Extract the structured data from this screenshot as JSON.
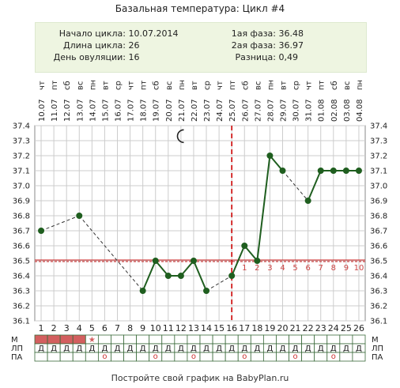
{
  "title": "Базальная температура: Цикл #4",
  "summary": {
    "cycle_start_label": "Начало цикла:",
    "cycle_start_value": "10.07.2014",
    "cycle_length_label": "Длина цикла:",
    "cycle_length_value": "26",
    "ovulation_day_label": "День овуляции:",
    "ovulation_day_value": "16",
    "phase1_label": "1ая фаза:",
    "phase1_value": "36.48",
    "phase2_label": "2ая фаза:",
    "phase2_value": "36.97",
    "difference_label": "Разница:",
    "difference_value": "0,49"
  },
  "chart_data": {
    "type": "line",
    "x": [
      1,
      2,
      3,
      4,
      5,
      6,
      7,
      8,
      9,
      10,
      11,
      12,
      13,
      14,
      15,
      16,
      17,
      18,
      19,
      20,
      21,
      22,
      23,
      24,
      25,
      26
    ],
    "dates": [
      "10.07",
      "11.07",
      "12.07",
      "13.07",
      "14.07",
      "15.07",
      "16.07",
      "17.07",
      "18.07",
      "19.07",
      "20.07",
      "21.07",
      "22.07",
      "23.07",
      "24.07",
      "25.07",
      "26.07",
      "27.07",
      "28.07",
      "29.07",
      "30.07",
      "31.07",
      "01.08",
      "02.08",
      "03.08",
      "04.08"
    ],
    "weekdays": [
      "чт",
      "пт",
      "сб",
      "вс",
      "пн",
      "вт",
      "ср",
      "чт",
      "пт",
      "сб",
      "вс",
      "пн",
      "вт",
      "ср",
      "чт",
      "пт",
      "сб",
      "вс",
      "пн",
      "вт",
      "ср",
      "чт",
      "пт",
      "сб",
      "вс",
      "пн"
    ],
    "series": [
      {
        "values": [
          36.7,
          null,
          null,
          36.8,
          null,
          null,
          null,
          null,
          36.3,
          36.5,
          36.4,
          36.4,
          36.5,
          36.3,
          null,
          36.4,
          36.6,
          36.5,
          37.2,
          37.1,
          null,
          36.9,
          37.1,
          37.1,
          37.1,
          37.1
        ],
        "color": "#1f5e1f"
      }
    ],
    "ylim": [
      36.1,
      37.4
    ],
    "yticks": [
      "36.1",
      "36.2",
      "36.3",
      "36.4",
      "36.5",
      "36.6",
      "36.7",
      "36.8",
      "36.9",
      "37.0",
      "37.1",
      "37.2",
      "37.3",
      "37.4"
    ],
    "coverline": 36.5,
    "ovulation_day": 16,
    "post_ovulation_labels": [
      "1",
      "2",
      "3",
      "4",
      "5",
      "6",
      "7",
      "8",
      "9",
      "10"
    ],
    "grid": true,
    "moon_icon_day": 12,
    "colors": {
      "line": "#1f5e1f",
      "coverline": "#cc2222",
      "ovulation": "#cc0000",
      "grid": "#cccccc",
      "menstruation": "#d35f5f",
      "info_bg": "#eef5e1"
    }
  },
  "rows": {
    "m_label": "М",
    "lp_label": "ЛП",
    "pa_label": "ПА",
    "m_days": 4,
    "star_day": 5,
    "lp_symbol": "Д",
    "pa_symbol": "о",
    "pa_days": [
      6,
      10,
      13,
      17,
      21,
      24
    ]
  },
  "footer": "Постройте свой график на BabyPlan.ru"
}
